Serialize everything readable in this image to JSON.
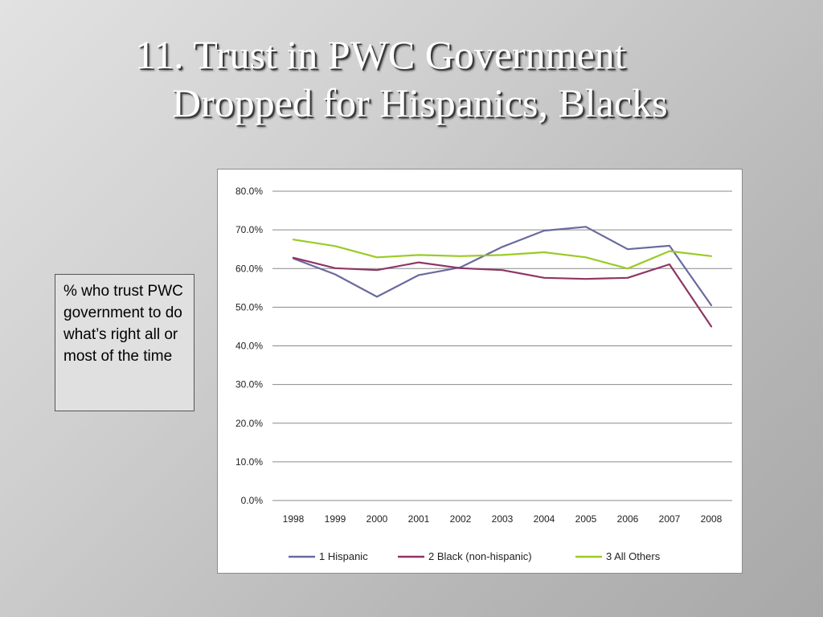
{
  "title": {
    "line1": "11. Trust in PWC Government",
    "line2": "Dropped for Hispanics, Blacks"
  },
  "note": "% who trust PWC government to do what’s right all or most of the time",
  "chart_data": {
    "type": "line",
    "x": [
      "1998",
      "1999",
      "2000",
      "2001",
      "2002",
      "2003",
      "2004",
      "2005",
      "2006",
      "2007",
      "2008"
    ],
    "ylim": [
      0,
      80
    ],
    "yticks": [
      "0.0%",
      "10.0%",
      "20.0%",
      "30.0%",
      "40.0%",
      "50.0%",
      "60.0%",
      "70.0%",
      "80.0%"
    ],
    "grid": true,
    "legend_position": "bottom",
    "series": [
      {
        "name": "1  Hispanic",
        "color": "#6a6a9e",
        "values": [
          62.6,
          58.5,
          52.7,
          58.3,
          60.3,
          65.6,
          69.8,
          70.8,
          65.0,
          65.9,
          50.5
        ]
      },
      {
        "name": "2  Black (non-hispanic)",
        "color": "#8f3565",
        "values": [
          62.8,
          60.1,
          59.6,
          61.6,
          60.1,
          59.6,
          57.6,
          57.3,
          57.6,
          61.1,
          45.0
        ]
      },
      {
        "name": "3  All Others",
        "color": "#9acb24",
        "values": [
          67.5,
          65.8,
          62.9,
          63.5,
          63.2,
          63.5,
          64.2,
          62.9,
          60.0,
          64.5,
          63.2
        ]
      }
    ]
  }
}
